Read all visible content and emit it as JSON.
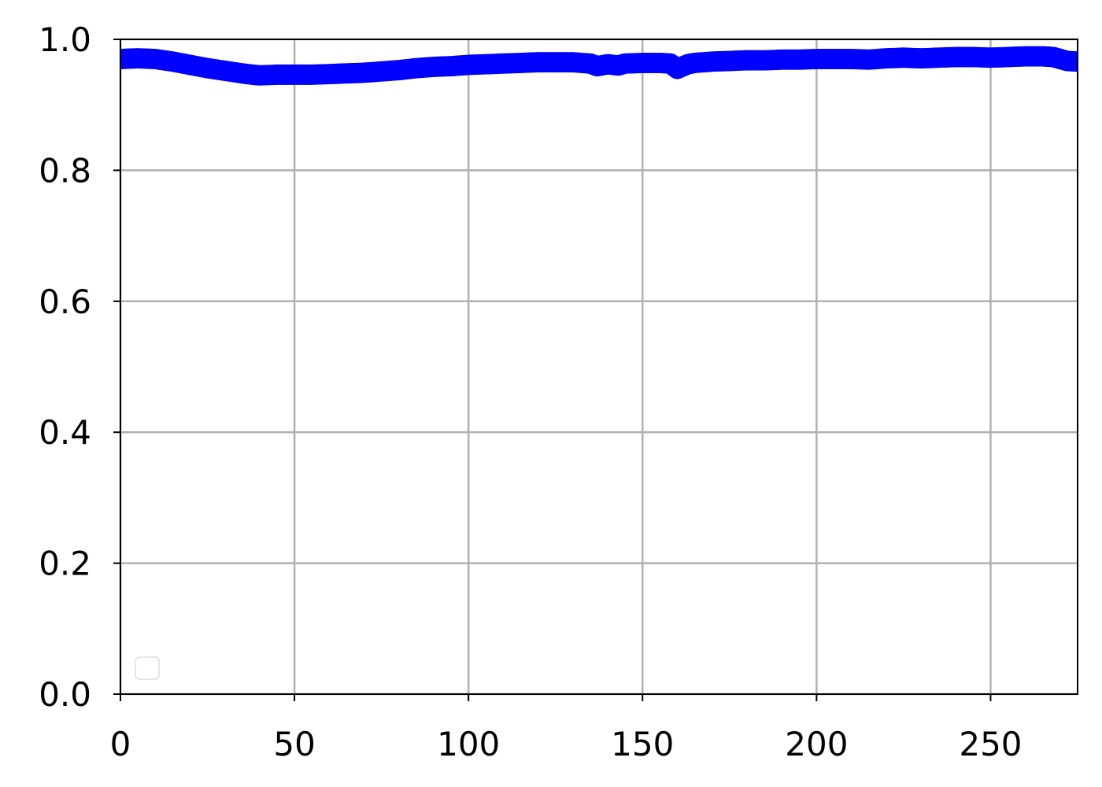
{
  "chart_data": {
    "type": "scatter",
    "title": "",
    "xlabel": "",
    "ylabel": "",
    "xlim": [
      0,
      275
    ],
    "ylim": [
      0.0,
      1.0
    ],
    "xticks": [
      0,
      50,
      100,
      150,
      200,
      250
    ],
    "xtick_labels": [
      "0",
      "50",
      "100",
      "150",
      "200",
      "250"
    ],
    "yticks": [
      0.0,
      0.2,
      0.4,
      0.6,
      0.8,
      1.0
    ],
    "ytick_labels": [
      "0.0",
      "0.2",
      "0.4",
      "0.6",
      "0.8",
      "1.0"
    ],
    "grid": true,
    "legend": {
      "placement": "lower-left",
      "entries": []
    },
    "series": [
      {
        "color": "#0000ff",
        "marker": "circle",
        "x": [
          0,
          5,
          10,
          15,
          20,
          25,
          30,
          35,
          38,
          40,
          45,
          50,
          55,
          60,
          65,
          70,
          75,
          80,
          85,
          90,
          95,
          100,
          105,
          110,
          115,
          120,
          125,
          130,
          135,
          137,
          140,
          143,
          145,
          150,
          155,
          158,
          160,
          163,
          165,
          170,
          175,
          180,
          185,
          190,
          195,
          200,
          205,
          210,
          215,
          220,
          225,
          230,
          235,
          240,
          245,
          250,
          255,
          260,
          265,
          268,
          270,
          272,
          275
        ],
        "y": [
          0.97,
          0.971,
          0.97,
          0.966,
          0.961,
          0.956,
          0.952,
          0.948,
          0.946,
          0.945,
          0.946,
          0.946,
          0.946,
          0.947,
          0.948,
          0.949,
          0.951,
          0.953,
          0.956,
          0.958,
          0.959,
          0.961,
          0.962,
          0.963,
          0.964,
          0.965,
          0.965,
          0.965,
          0.963,
          0.959,
          0.962,
          0.96,
          0.963,
          0.964,
          0.964,
          0.963,
          0.955,
          0.962,
          0.964,
          0.966,
          0.967,
          0.968,
          0.968,
          0.969,
          0.969,
          0.97,
          0.97,
          0.97,
          0.969,
          0.971,
          0.972,
          0.971,
          0.972,
          0.973,
          0.973,
          0.972,
          0.973,
          0.974,
          0.974,
          0.973,
          0.97,
          0.967,
          0.966
        ]
      }
    ]
  }
}
